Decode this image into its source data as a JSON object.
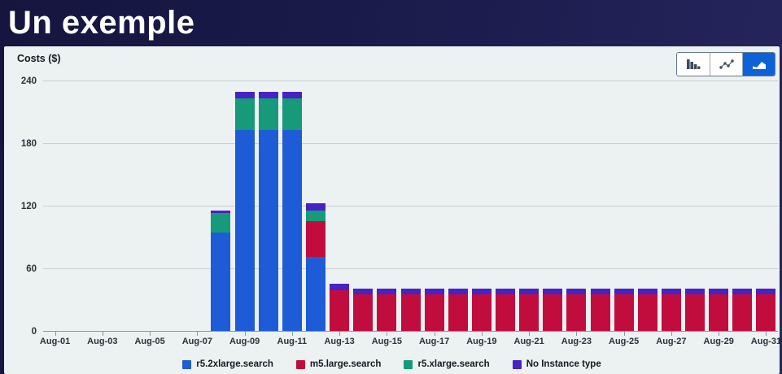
{
  "page": {
    "title": "Un exemple"
  },
  "panel": {
    "y_axis_title": "Costs ($)",
    "toolbar": {
      "buttons": [
        {
          "name": "bar-chart",
          "selected": false
        },
        {
          "name": "line-chart",
          "selected": false
        },
        {
          "name": "stacked-bar-chart",
          "selected": true
        }
      ]
    }
  },
  "colors": {
    "header_bg": "#1c1c4e",
    "panel_bg": "#ecf1f2",
    "selected_button": "#0e62d8",
    "gridline": "#c8d0d4",
    "axis_text": "#2a333c"
  },
  "chart_data": {
    "type": "bar",
    "stacked": true,
    "ylabel": "Costs ($)",
    "ylim": [
      0,
      240
    ],
    "y_ticks": [
      0,
      60,
      120,
      180,
      240
    ],
    "grid": true,
    "legend_position": "bottom",
    "x": [
      "Aug-01",
      "Aug-02",
      "Aug-03",
      "Aug-04",
      "Aug-05",
      "Aug-06",
      "Aug-07",
      "Aug-08",
      "Aug-09",
      "Aug-10",
      "Aug-11",
      "Aug-12",
      "Aug-13",
      "Aug-14",
      "Aug-15",
      "Aug-16",
      "Aug-17",
      "Aug-18",
      "Aug-19",
      "Aug-20",
      "Aug-21",
      "Aug-22",
      "Aug-23",
      "Aug-24",
      "Aug-25",
      "Aug-26",
      "Aug-27",
      "Aug-28",
      "Aug-29",
      "Aug-30",
      "Aug-31"
    ],
    "x_tick_labels": [
      "Aug-01",
      "Aug-03",
      "Aug-05",
      "Aug-07",
      "Aug-09",
      "Aug-11",
      "Aug-13",
      "Aug-15",
      "Aug-17",
      "Aug-19",
      "Aug-21",
      "Aug-23",
      "Aug-25",
      "Aug-27",
      "Aug-29",
      "Aug-31"
    ],
    "series": [
      {
        "name": "r5.2xlarge.search",
        "color": "#1e5cd7",
        "values": [
          0,
          0,
          0,
          0,
          0,
          0,
          0,
          95,
          193,
          193,
          193,
          72,
          0,
          0,
          0,
          0,
          0,
          0,
          0,
          0,
          0,
          0,
          0,
          0,
          0,
          0,
          0,
          0,
          0,
          0,
          0
        ]
      },
      {
        "name": "m5.large.search",
        "color": "#c00d3d",
        "values": [
          0,
          0,
          0,
          0,
          0,
          0,
          0,
          0,
          0,
          0,
          0,
          34,
          40,
          36,
          36,
          36,
          36,
          36,
          36,
          36,
          36,
          36,
          36,
          36,
          36,
          36,
          36,
          36,
          36,
          36,
          36
        ]
      },
      {
        "name": "r5.xlarge.search",
        "color": "#169a79",
        "values": [
          0,
          0,
          0,
          0,
          0,
          0,
          0,
          19,
          31,
          31,
          31,
          10,
          0,
          0,
          0,
          0,
          0,
          0,
          0,
          0,
          0,
          0,
          0,
          0,
          0,
          0,
          0,
          0,
          0,
          0,
          0
        ]
      },
      {
        "name": "No Instance type",
        "color": "#4722c4",
        "values": [
          0,
          0,
          0,
          0,
          0,
          0,
          0,
          2,
          6,
          6,
          6,
          7,
          6,
          5,
          5,
          5,
          5,
          5,
          5,
          5,
          5,
          5,
          5,
          5,
          5,
          5,
          5,
          5,
          5,
          5,
          5
        ]
      }
    ]
  }
}
